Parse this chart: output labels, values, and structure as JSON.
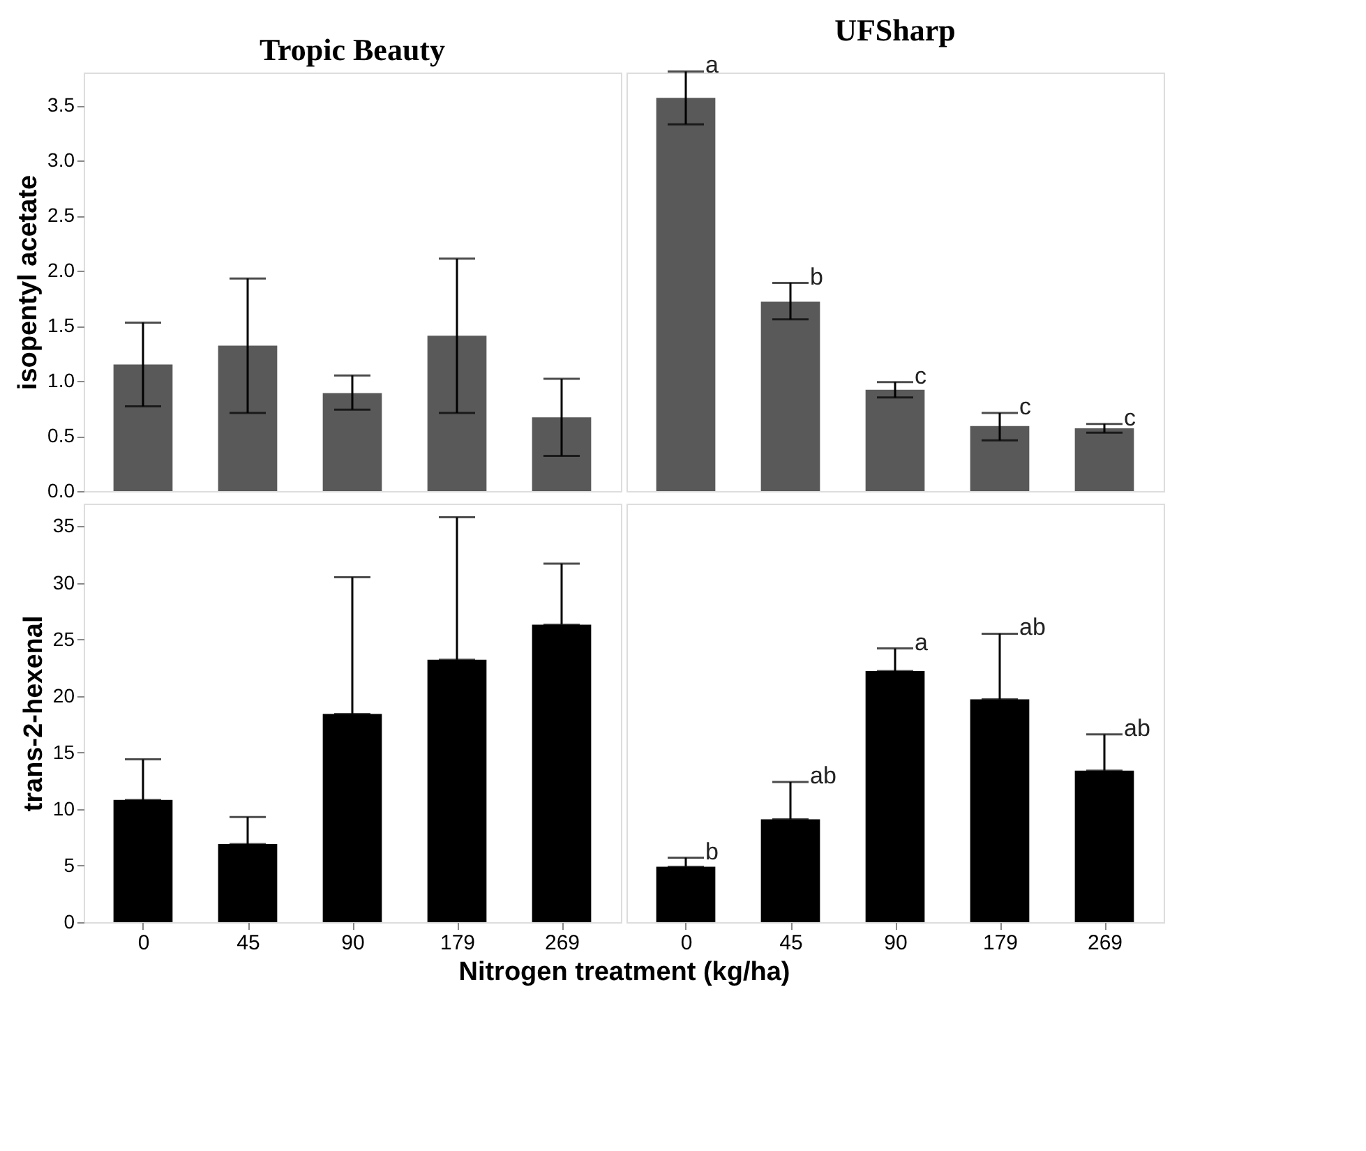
{
  "chart_data": [
    {
      "type": "bar",
      "title": "Tropic Beauty",
      "ylabel": "isopentyl acetate",
      "categories": [
        "0",
        "45",
        "90",
        "179",
        "269"
      ],
      "values": [
        1.15,
        1.32,
        0.89,
        1.41,
        0.67
      ],
      "errors": [
        [
          0.77,
          1.53
        ],
        [
          0.71,
          1.93
        ],
        [
          0.74,
          1.05
        ],
        [
          0.71,
          2.11
        ],
        [
          0.32,
          1.02
        ]
      ],
      "color": "#595959",
      "ylim": [
        0,
        3.8
      ],
      "yticks": [
        {
          "value": 0,
          "label": "0.0"
        },
        {
          "value": 0.5,
          "label": "0.5"
        },
        {
          "value": 1,
          "label": "1.0"
        },
        {
          "value": 1.5,
          "label": "1.5"
        },
        {
          "value": 2,
          "label": "2.0"
        },
        {
          "value": 2.5,
          "label": "2.5"
        },
        {
          "value": 3,
          "label": "3.0"
        },
        {
          "value": 3.5,
          "label": "3.5"
        }
      ],
      "tick_labels": "y"
    },
    {
      "type": "bar",
      "title": "UFSharp",
      "categories": [
        "0",
        "45",
        "90",
        "179",
        "269"
      ],
      "values": [
        3.57,
        1.72,
        0.92,
        0.59,
        0.57
      ],
      "errors": [
        [
          3.33,
          3.81
        ],
        [
          1.56,
          1.89
        ],
        [
          0.85,
          0.99
        ],
        [
          0.46,
          0.71
        ],
        [
          0.53,
          0.61
        ]
      ],
      "color": "#595959",
      "ylim": [
        0,
        3.8
      ],
      "yticks": [
        0,
        0.5,
        1,
        1.5,
        2,
        2.5,
        3,
        3.5
      ],
      "tick_labels": false,
      "annotations": [
        {
          "text": "a",
          "x": "0",
          "y": 3.81
        },
        {
          "text": "b",
          "x": "45",
          "y": 1.89
        },
        {
          "text": "c",
          "x": "90",
          "y": 0.99
        },
        {
          "text": "c",
          "x": "179",
          "y": 0.71
        },
        {
          "text": "c",
          "x": "269",
          "y": 0.61
        }
      ]
    },
    {
      "type": "bar",
      "ylabel": "trans-2-hexenal",
      "xlabel": "Nitrogen treatment (kg/ha)",
      "categories": [
        "0",
        "45",
        "90",
        "179",
        "269"
      ],
      "values": [
        10.8,
        6.9,
        18.4,
        23.2,
        26.3
      ],
      "errors": [
        [
          10.8,
          14.4
        ],
        [
          6.9,
          9.3
        ],
        [
          18.4,
          30.5
        ],
        [
          23.2,
          35.8
        ],
        [
          26.3,
          31.7
        ]
      ],
      "color": "#000000",
      "ylim": [
        0,
        37
      ],
      "yticks": [
        0,
        5,
        10,
        15,
        20,
        25,
        30,
        35
      ]
    },
    {
      "type": "bar",
      "categories": [
        "0",
        "45",
        "90",
        "179",
        "269"
      ],
      "values": [
        4.9,
        9.1,
        22.2,
        19.7,
        13.4
      ],
      "errors": [
        [
          4.9,
          5.7
        ],
        [
          9.1,
          12.4
        ],
        [
          22.2,
          24.2
        ],
        [
          19.7,
          25.5
        ],
        [
          13.4,
          16.6
        ]
      ],
      "color": "#000000",
      "ylim": [
        0,
        37
      ],
      "yticks": [
        0,
        5,
        10,
        15,
        20,
        25,
        30,
        35
      ],
      "tick_labels": "x",
      "annotations": [
        {
          "text": "b",
          "x": "0",
          "y": 5.7
        },
        {
          "text": "ab",
          "x": "45",
          "y": 12.4
        },
        {
          "text": "a",
          "x": "90",
          "y": 24.2
        },
        {
          "text": "ab",
          "x": "179",
          "y": 25.5
        },
        {
          "text": "ab",
          "x": "269",
          "y": 16.6
        }
      ]
    }
  ]
}
